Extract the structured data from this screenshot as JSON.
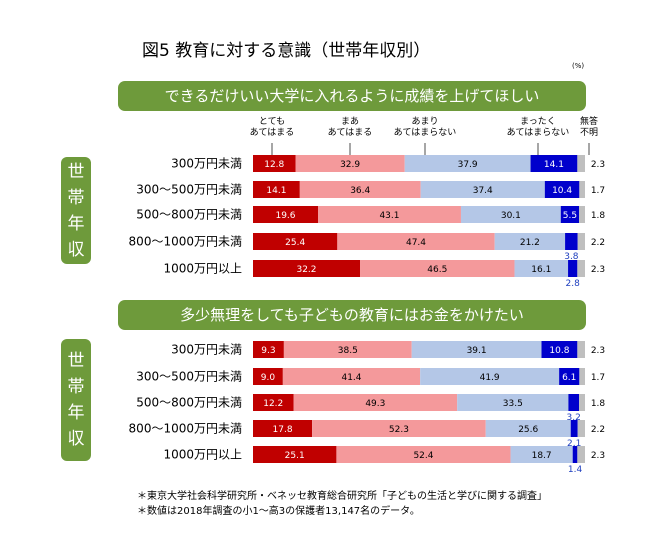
{
  "title": "図5 教育に対する意識（世帯年収別）",
  "unit": "(%)",
  "side_label": [
    "世",
    "帯",
    "年",
    "収"
  ],
  "footnotes": [
    "＊東京大学社会科学研究所・ベネッセ教育総合研究所「子どもの生活と学びに関する調査」",
    "＊数値は2018年調査の小1～高3の保護者13,147名のデータ。"
  ],
  "colors": {
    "totemo": "#c00000",
    "maa": "#f4999b",
    "amari": "#b4c7e7",
    "mattaku": "#0000cc",
    "mutou": "#bfbfbf",
    "banner": "#6e9a3b",
    "small_label": "#1f3fbf"
  },
  "chart_data": [
    {
      "type": "bar",
      "orientation": "horizontal",
      "stacked": true,
      "title": "できるだけいい大学に入れるように成績を上げてほしい",
      "categories": [
        "300万円未満",
        "300～500万円未満",
        "500～800万円未満",
        "800～1000万円未満",
        "1000万円以上"
      ],
      "series": [
        {
          "name": "とても あてはまる",
          "values": [
            12.8,
            14.1,
            19.6,
            25.4,
            32.2
          ]
        },
        {
          "name": "まあ あてはまる",
          "values": [
            32.9,
            36.4,
            43.1,
            47.4,
            46.5
          ]
        },
        {
          "name": "あまり あてはまらない",
          "values": [
            37.9,
            37.4,
            30.1,
            21.2,
            16.1
          ]
        },
        {
          "name": "まったく あてはまらない",
          "values": [
            14.1,
            10.4,
            5.5,
            3.8,
            2.8
          ]
        },
        {
          "name": "無答 不明",
          "values": [
            2.3,
            1.7,
            1.8,
            2.2,
            2.3
          ]
        }
      ],
      "xlim": [
        0,
        100
      ]
    },
    {
      "type": "bar",
      "orientation": "horizontal",
      "stacked": true,
      "title": "多少無理をしても子どもの教育にはお金をかけたい",
      "categories": [
        "300万円未満",
        "300～500万円未満",
        "500～800万円未満",
        "800～1000万円未満",
        "1000万円以上"
      ],
      "series": [
        {
          "name": "とても あてはまる",
          "values": [
            9.3,
            9.0,
            12.2,
            17.8,
            25.1
          ]
        },
        {
          "name": "まあ あてはまる",
          "values": [
            38.5,
            41.4,
            49.3,
            52.3,
            52.4
          ]
        },
        {
          "name": "あまり あてはまらない",
          "values": [
            39.1,
            41.9,
            33.5,
            25.6,
            18.7
          ]
        },
        {
          "name": "まったく あてはまらない",
          "values": [
            10.8,
            6.1,
            3.2,
            2.1,
            1.4
          ]
        },
        {
          "name": "無答 不明",
          "values": [
            2.3,
            1.7,
            1.8,
            2.2,
            2.3
          ]
        }
      ],
      "xlim": [
        0,
        100
      ]
    }
  ]
}
